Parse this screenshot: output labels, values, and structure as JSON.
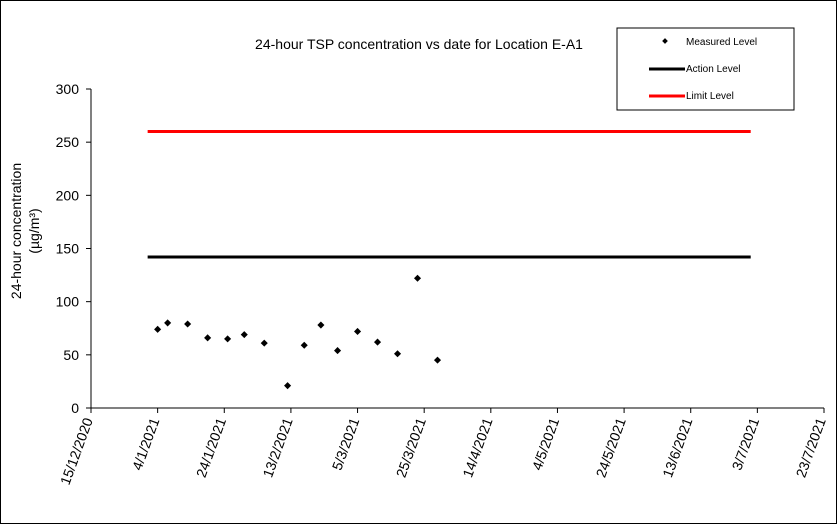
{
  "chart_data": {
    "type": "scatter",
    "title": "24-hour TSP concentration vs date for Location E-A1",
    "ylabel_line1": "24-hour concentration",
    "ylabel_line2": "(µg/m³)",
    "ylim": [
      0,
      300
    ],
    "yticks": [
      0,
      50,
      100,
      150,
      200,
      250,
      300
    ],
    "xlim": [
      "2020-12-15",
      "2021-07-23"
    ],
    "xtick_dates": [
      "2020-12-15",
      "2021-01-04",
      "2021-01-24",
      "2021-02-13",
      "2021-03-05",
      "2021-03-25",
      "2021-04-14",
      "2021-05-04",
      "2021-05-24",
      "2021-06-13",
      "2021-07-03",
      "2021-07-23"
    ],
    "xtick_labels": [
      "15/12/2020",
      "4/1/2021",
      "24/1/2021",
      "13/2/2021",
      "5/3/2021",
      "25/3/2021",
      "14/4/2021",
      "4/5/2021",
      "24/5/2021",
      "13/6/2021",
      "3/7/2021",
      "23/7/2021"
    ],
    "grid": false,
    "legend_position": "top-right",
    "series": [
      {
        "name": "Measured Level",
        "kind": "scatter",
        "color": "#000000",
        "points": [
          {
            "x": "2021-01-04",
            "y": 74
          },
          {
            "x": "2021-01-07",
            "y": 80
          },
          {
            "x": "2021-01-13",
            "y": 79
          },
          {
            "x": "2021-01-19",
            "y": 66
          },
          {
            "x": "2021-01-25",
            "y": 65
          },
          {
            "x": "2021-01-30",
            "y": 69
          },
          {
            "x": "2021-02-05",
            "y": 61
          },
          {
            "x": "2021-02-12",
            "y": 21
          },
          {
            "x": "2021-02-17",
            "y": 59
          },
          {
            "x": "2021-02-22",
            "y": 78
          },
          {
            "x": "2021-02-27",
            "y": 54
          },
          {
            "x": "2021-03-05",
            "y": 72
          },
          {
            "x": "2021-03-11",
            "y": 62
          },
          {
            "x": "2021-03-17",
            "y": 51
          },
          {
            "x": "2021-03-23",
            "y": 122
          },
          {
            "x": "2021-03-29",
            "y": 45
          }
        ]
      },
      {
        "name": "Action Level",
        "kind": "line",
        "color": "#000000",
        "value": 142,
        "x_start": "2021-01-01",
        "x_end": "2021-07-01"
      },
      {
        "name": "Limit Level",
        "kind": "line",
        "color": "#ff0000",
        "value": 260,
        "x_start": "2021-01-01",
        "x_end": "2021-07-01"
      }
    ]
  }
}
